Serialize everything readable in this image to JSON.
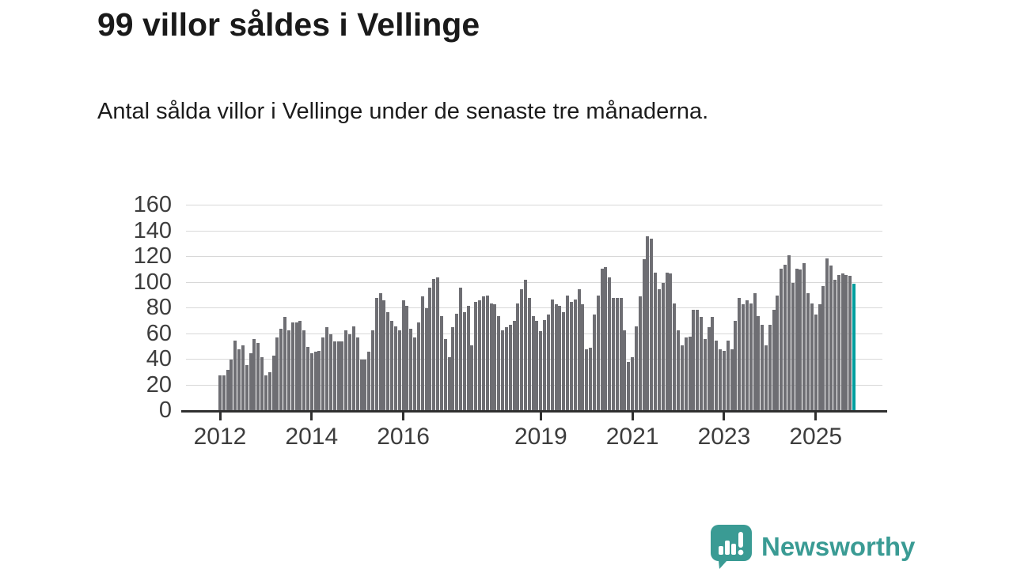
{
  "title": "99 villor såldes i Vellinge",
  "subtitle": "Antal sålda villor i Vellinge under de senaste tre månaderna.",
  "branding": {
    "name": "Newsworthy"
  },
  "colors": {
    "bar": "#6e6e73",
    "highlight": "#009e9e",
    "grid": "#d8d8d8",
    "axis": "#2f2f2f",
    "tick_text": "#3d3d3d",
    "brand_teal": "#3a9b94"
  },
  "chart_data": {
    "type": "bar",
    "title": "Antal sålda villor i Vellinge, rullande tre månader",
    "x_start": "2012-01",
    "frequency": "monthly",
    "xlabel": "",
    "ylabel": "",
    "ylim": [
      0,
      160
    ],
    "y_ticks": [
      0,
      20,
      40,
      60,
      80,
      100,
      120,
      140,
      160
    ],
    "x_tick_years": [
      2012,
      2014,
      2016,
      2019,
      2021,
      2023,
      2025
    ],
    "grid": "horizontal",
    "legend": "none",
    "values": [
      28,
      28,
      32,
      40,
      55,
      48,
      51,
      36,
      45,
      56,
      53,
      42,
      28,
      30,
      43,
      57,
      64,
      73,
      63,
      69,
      69,
      70,
      63,
      50,
      45,
      46,
      47,
      57,
      65,
      60,
      54,
      54,
      54,
      63,
      60,
      66,
      57,
      40,
      40,
      46,
      63,
      88,
      92,
      86,
      77,
      70,
      66,
      63,
      86,
      82,
      64,
      57,
      69,
      89,
      80,
      96,
      103,
      104,
      74,
      56,
      42,
      65,
      76,
      96,
      77,
      82,
      51,
      85,
      86,
      89,
      90,
      84,
      83,
      74,
      63,
      65,
      67,
      70,
      84,
      95,
      102,
      88,
      74,
      70,
      62,
      71,
      75,
      87,
      83,
      82,
      77,
      90,
      85,
      87,
      95,
      83,
      48,
      49,
      75,
      90,
      111,
      112,
      104,
      88,
      88,
      88,
      63,
      38,
      42,
      66,
      89,
      118,
      136,
      134,
      108,
      95,
      100,
      108,
      107,
      84,
      63,
      51,
      57,
      58,
      79,
      79,
      73,
      56,
      65,
      73,
      55,
      48,
      47,
      55,
      48,
      70,
      88,
      83,
      86,
      84,
      92,
      74,
      67,
      51,
      67,
      79,
      90,
      111,
      114,
      121,
      100,
      111,
      110,
      115,
      92,
      84,
      75,
      83,
      97,
      119,
      113,
      102,
      106,
      107,
      106,
      105,
      99
    ],
    "highlight_index": 166,
    "highlight_value": 99,
    "highlight_label": "99"
  }
}
